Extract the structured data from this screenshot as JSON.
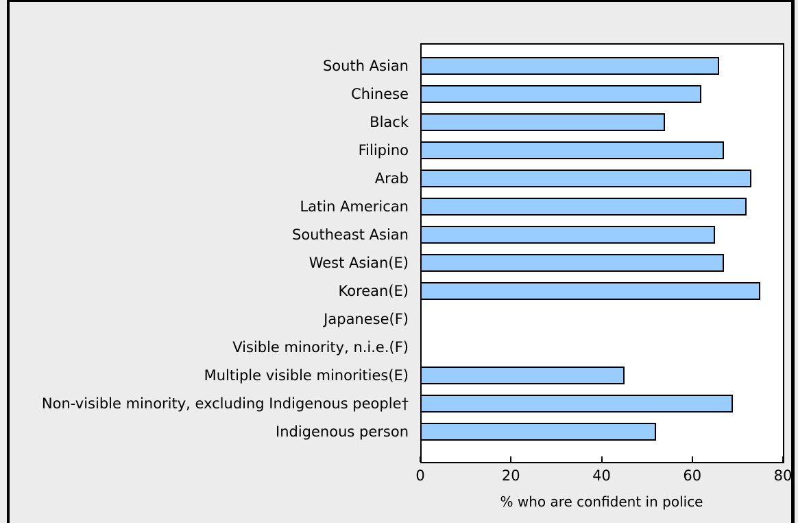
{
  "chart_data": {
    "type": "bar",
    "orientation": "horizontal",
    "title": "",
    "categories": [
      "South Asian",
      "Chinese",
      "Black",
      "Filipino",
      "Arab",
      "Latin American",
      "Southeast Asian",
      "West Asian(E)",
      "Korean(E)",
      "Japanese(F)",
      "Visible minority, n.i.e.(F)",
      "Multiple visible minorities(E)",
      "Non-visible minority, excluding Indigenous people†",
      "Indigenous person"
    ],
    "values": [
      66,
      62,
      54,
      67,
      73,
      72,
      65,
      67,
      75,
      null,
      null,
      45,
      69,
      52
    ],
    "xlabel": "% who are confident in police",
    "ylabel": "",
    "xlim": [
      0,
      80
    ],
    "xticks": [
      0,
      20,
      40,
      60,
      80
    ],
    "grid": "off",
    "legend": "none",
    "colors": {
      "bar_fill": "#99ccff",
      "bar_border": "#000000",
      "plot_background": "#ffffff",
      "page_background": "#ececec",
      "frame_border": "#000000",
      "text": "#000000"
    }
  }
}
